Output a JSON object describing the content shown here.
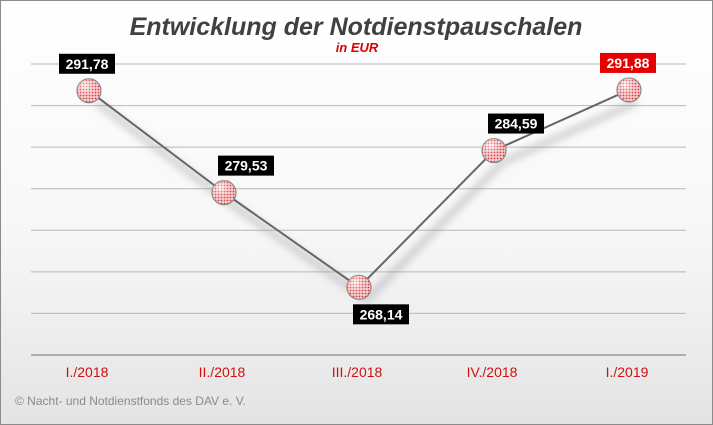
{
  "chart_data": {
    "type": "line",
    "title": "Entwicklung der Notdienstpauschalen",
    "subtitle": "in EUR",
    "categories": [
      "I./2018",
      "II./2018",
      "III./2018",
      "IV./2018",
      "I./2019"
    ],
    "series": [
      {
        "values": [
          291.78,
          279.53,
          268.14,
          284.59,
          291.88
        ]
      }
    ],
    "data_labels": [
      "291,78",
      "279,53",
      "268,14",
      "284,59",
      "291,88"
    ],
    "highlighted_label_index": 4,
    "ylim": [
      260,
      295
    ],
    "y_gridlines": [
      260,
      265,
      270,
      275,
      280,
      285,
      290,
      295
    ],
    "grid": true,
    "legend": "none",
    "colors": {
      "line": "#666666",
      "marker": "#e8303a",
      "label_bg": "#000000",
      "label_highlight_bg": "#e60000",
      "tick_label": "#d01010",
      "title": "#404040",
      "subtitle": "#e00000"
    }
  },
  "footer": {
    "copyright": "© Nacht- und Notdienstfonds des DAV e. V."
  }
}
